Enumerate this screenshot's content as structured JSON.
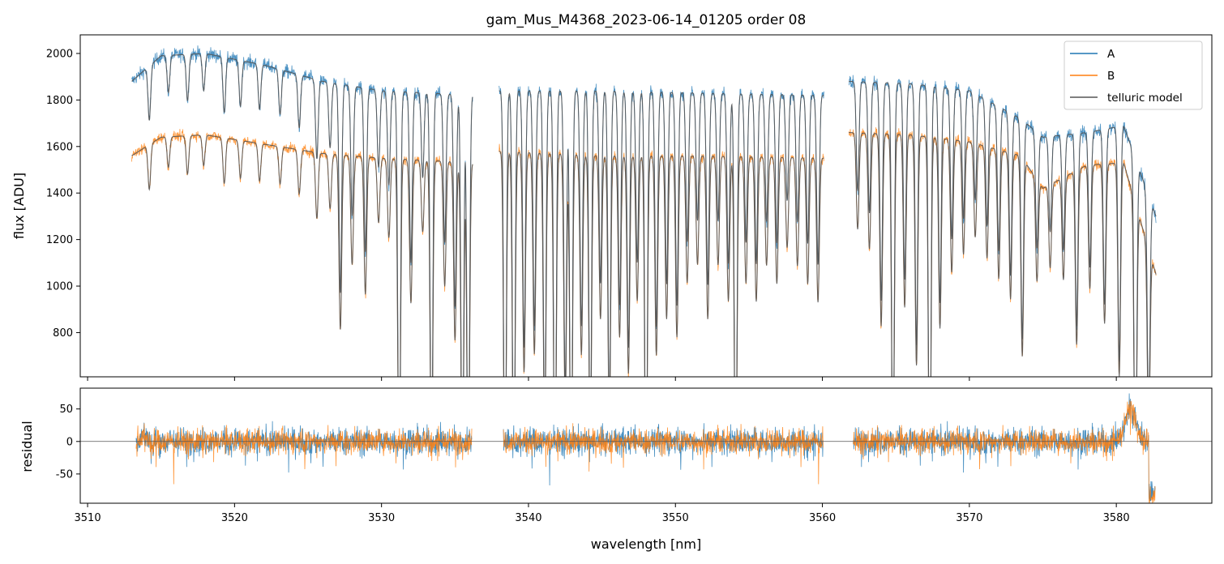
{
  "chart_data": [
    {
      "type": "line",
      "panel": "top",
      "title": "gam_Mus_M4368_2023-06-14_01205  order 08",
      "xlabel": "",
      "ylabel": "flux [ADU]",
      "xlim": [
        3509.5,
        3586.5
      ],
      "ylim": [
        610,
        2080
      ],
      "yticks": [
        800,
        1000,
        1200,
        1400,
        1600,
        1800,
        2000
      ],
      "xticks": [
        3510,
        3520,
        3530,
        3540,
        3550,
        3560,
        3570,
        3580
      ],
      "grid": false,
      "legend": {
        "placement": "top-right",
        "entries": [
          "A",
          "B",
          "telluric model"
        ]
      },
      "segments": [
        [
          3513.0,
          3536.2
        ],
        [
          3538.0,
          3560.1
        ],
        [
          3561.8,
          3582.7
        ]
      ],
      "series": [
        {
          "name": "A",
          "color": "#1f77b4",
          "continuum_points": [
            [
              3513.0,
              1880
            ],
            [
              3515.0,
              1990
            ],
            [
              3518.0,
              2000
            ],
            [
              3522.0,
              1950
            ],
            [
              3526.0,
              1880
            ],
            [
              3530.0,
              1840
            ],
            [
              3536.2,
              1820
            ],
            [
              3538.0,
              1840
            ],
            [
              3545.0,
              1840
            ],
            [
              3552.0,
              1830
            ],
            [
              3560.1,
              1820
            ],
            [
              3561.8,
              1880
            ],
            [
              3566.0,
              1870
            ],
            [
              3570.0,
              1840
            ],
            [
              3573.5,
              1720
            ],
            [
              3575.0,
              1640
            ],
            [
              3578.0,
              1660
            ],
            [
              3580.5,
              1690
            ],
            [
              3582.7,
              1300
            ]
          ]
        },
        {
          "name": "B",
          "color": "#ff7f0e",
          "continuum_points": [
            [
              3513.0,
              1560
            ],
            [
              3515.0,
              1640
            ],
            [
              3518.0,
              1650
            ],
            [
              3522.0,
              1610
            ],
            [
              3526.0,
              1570
            ],
            [
              3530.0,
              1550
            ],
            [
              3536.2,
              1530
            ],
            [
              3538.0,
              1580
            ],
            [
              3545.0,
              1560
            ],
            [
              3552.0,
              1560
            ],
            [
              3560.1,
              1550
            ],
            [
              3561.8,
              1660
            ],
            [
              3566.0,
              1650
            ],
            [
              3570.0,
              1620
            ],
            [
              3573.5,
              1560
            ],
            [
              3575.0,
              1420
            ],
            [
              3578.0,
              1520
            ],
            [
              3580.5,
              1530
            ],
            [
              3582.7,
              1050
            ]
          ]
        },
        {
          "name": "telluric model",
          "color": "#555555"
        }
      ],
      "absorption_lines": [
        [
          3514.2,
          0.12
        ],
        [
          3515.5,
          0.08
        ],
        [
          3516.8,
          0.1
        ],
        [
          3517.9,
          0.08
        ],
        [
          3519.3,
          0.12
        ],
        [
          3520.4,
          0.1
        ],
        [
          3521.7,
          0.1
        ],
        [
          3523.1,
          0.1
        ],
        [
          3524.4,
          0.12
        ],
        [
          3525.6,
          0.18
        ],
        [
          3526.5,
          0.15
        ],
        [
          3527.2,
          0.48
        ],
        [
          3528.0,
          0.3
        ],
        [
          3528.9,
          0.38
        ],
        [
          3529.8,
          0.18
        ],
        [
          3530.5,
          0.22
        ],
        [
          3531.2,
          0.95
        ],
        [
          3532.0,
          0.4
        ],
        [
          3532.8,
          0.2
        ],
        [
          3533.4,
          0.9
        ],
        [
          3534.3,
          0.35
        ],
        [
          3535.0,
          0.5
        ],
        [
          3535.5,
          0.98
        ],
        [
          3535.9,
          0.98
        ],
        [
          3538.4,
          0.98
        ],
        [
          3539.0,
          0.98
        ],
        [
          3539.7,
          0.6
        ],
        [
          3540.4,
          0.55
        ],
        [
          3541.1,
          0.8
        ],
        [
          3541.8,
          0.98
        ],
        [
          3542.5,
          0.7
        ],
        [
          3542.9,
          0.98
        ],
        [
          3543.6,
          0.55
        ],
        [
          3544.2,
          0.85
        ],
        [
          3544.9,
          0.45
        ],
        [
          3545.5,
          0.75
        ],
        [
          3546.2,
          0.5
        ],
        [
          3546.8,
          0.6
        ],
        [
          3547.4,
          0.4
        ],
        [
          3548.0,
          0.98
        ],
        [
          3548.7,
          0.55
        ],
        [
          3549.4,
          0.45
        ],
        [
          3550.1,
          0.5
        ],
        [
          3550.8,
          0.35
        ],
        [
          3551.5,
          0.3
        ],
        [
          3552.2,
          0.45
        ],
        [
          3552.9,
          0.3
        ],
        [
          3553.6,
          0.4
        ],
        [
          3554.1,
          0.98
        ],
        [
          3554.8,
          0.35
        ],
        [
          3555.5,
          0.4
        ],
        [
          3556.2,
          0.3
        ],
        [
          3556.9,
          0.35
        ],
        [
          3557.6,
          0.25
        ],
        [
          3558.3,
          0.3
        ],
        [
          3559.0,
          0.35
        ],
        [
          3559.7,
          0.4
        ],
        [
          3562.4,
          0.25
        ],
        [
          3563.2,
          0.3
        ],
        [
          3564.0,
          0.5
        ],
        [
          3564.8,
          0.92
        ],
        [
          3565.6,
          0.45
        ],
        [
          3566.4,
          0.6
        ],
        [
          3567.3,
          0.98
        ],
        [
          3568.0,
          0.5
        ],
        [
          3568.8,
          0.35
        ],
        [
          3569.6,
          0.3
        ],
        [
          3570.4,
          0.25
        ],
        [
          3571.2,
          0.3
        ],
        [
          3572.0,
          0.35
        ],
        [
          3572.8,
          0.4
        ],
        [
          3573.6,
          0.55
        ],
        [
          3574.6,
          0.3
        ],
        [
          3575.5,
          0.25
        ],
        [
          3576.4,
          0.3
        ],
        [
          3577.3,
          0.5
        ],
        [
          3578.2,
          0.35
        ],
        [
          3579.2,
          0.45
        ],
        [
          3580.2,
          0.6
        ],
        [
          3581.3,
          0.98
        ],
        [
          3582.2,
          0.7
        ]
      ]
    },
    {
      "type": "line",
      "panel": "bottom",
      "title": "",
      "xlabel": "wavelength [nm]",
      "ylabel": "residual",
      "xlim": [
        3509.5,
        3586.5
      ],
      "ylim": [
        -95,
        82
      ],
      "yticks": [
        -50,
        0,
        50
      ],
      "xticks": [
        3510,
        3520,
        3530,
        3540,
        3550,
        3560,
        3570,
        3580
      ],
      "zero_line": true,
      "grid": false,
      "series": [
        {
          "name": "A",
          "color": "#1f77b4",
          "noise_sigma": 20
        },
        {
          "name": "B",
          "color": "#ff7f0e",
          "noise_sigma": 18
        }
      ]
    }
  ]
}
